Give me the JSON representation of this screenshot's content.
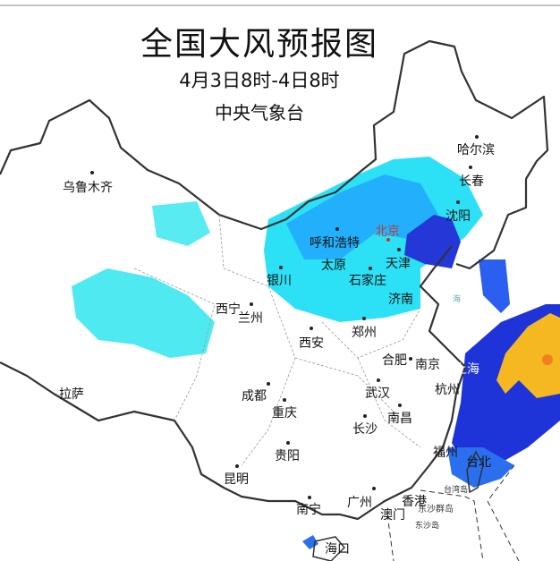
{
  "header": {
    "title": "全国大风预报图",
    "period": "4月3日8时-4日8时",
    "agency": "中央气象台"
  },
  "colors": {
    "light_wind": "#33e6f2",
    "moderate_wind": "#1e9bff",
    "strong_wind": "#2040e0",
    "gale": "#f5b820",
    "storm": "#f08020",
    "capital": "#c0392b"
  },
  "cities": [
    "乌鲁木齐",
    "哈尔滨",
    "长春",
    "沈阳",
    "北京",
    "呼和浩特",
    "天津",
    "太原",
    "石家庄",
    "银川",
    "济南",
    "西宁",
    "兰州",
    "西安",
    "郑州",
    "合肥",
    "南京",
    "上海",
    "杭州",
    "拉萨",
    "成都",
    "重庆",
    "武汉",
    "南昌",
    "长沙",
    "贵阳",
    "福州",
    "台北",
    "昆明",
    "南宁",
    "广州",
    "香港",
    "澳门",
    "海口"
  ],
  "islands": [
    "台湾岛",
    "东沙群岛",
    "东沙岛"
  ],
  "sea": "海"
}
